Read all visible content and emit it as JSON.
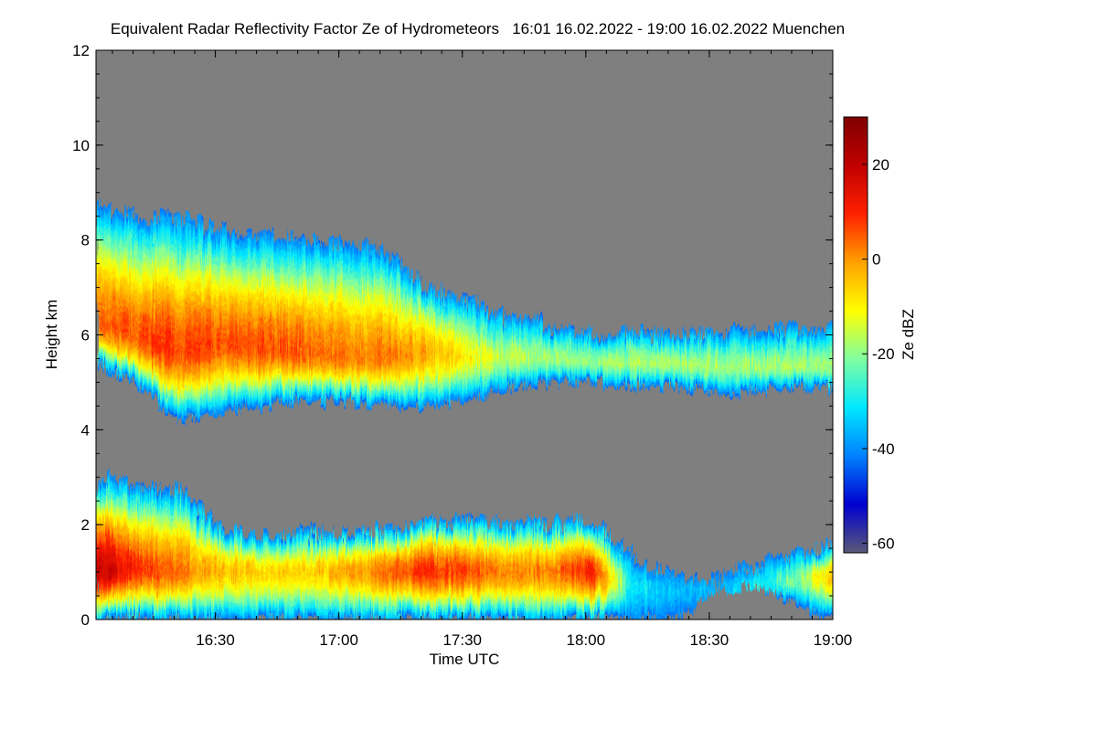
{
  "chart_data": {
    "type": "heatmap",
    "title": "Equivalent Radar Reflectivity Factor Ze of Hydrometeors   16:01 16.02.2022 - 19:00 16.02.2022 Muenchen",
    "xlabel": "Time UTC",
    "ylabel": "Height km",
    "colorbar_label": "Ze dBZ",
    "x_range": [
      "16:01",
      "19:00"
    ],
    "x_ticks": [
      "16:30",
      "17:00",
      "17:30",
      "18:00",
      "18:30",
      "19:00"
    ],
    "x_tick_minutes": [
      29,
      59,
      89,
      119,
      149,
      179
    ],
    "xlim_minutes": [
      0,
      179
    ],
    "ylim": [
      0,
      12
    ],
    "y_ticks": [
      0,
      2,
      4,
      6,
      8,
      10,
      12
    ],
    "colorbar_range": [
      -62,
      30
    ],
    "colorbar_ticks": [
      20,
      0,
      -20,
      -40,
      -60
    ],
    "background_color": "#7f7f7f",
    "colormap": [
      "#5a5a78",
      "#0000d0",
      "#0080ff",
      "#00e8ff",
      "#80ffa0",
      "#ffff00",
      "#ffa000",
      "#ff2000",
      "#c00000",
      "#800000"
    ],
    "layers": [
      {
        "name": "upper",
        "x_minutes": [
          0,
          10,
          20,
          30,
          40,
          50,
          60,
          70,
          80,
          90,
          100,
          110,
          120,
          130,
          140,
          150,
          160,
          170,
          179
        ],
        "base_km": [
          5.4,
          4.9,
          4.2,
          4.4,
          4.5,
          4.6,
          4.6,
          4.5,
          4.5,
          4.6,
          4.9,
          5.0,
          5.0,
          4.9,
          4.9,
          4.8,
          4.8,
          4.9,
          4.9
        ],
        "top_km": [
          8.7,
          8.5,
          8.4,
          8.2,
          8.1,
          8.0,
          7.9,
          7.8,
          7.0,
          6.7,
          6.3,
          6.2,
          6.0,
          6.0,
          6.0,
          6.0,
          6.0,
          6.1,
          6.1
        ],
        "core_km": [
          6.2,
          5.9,
          5.6,
          5.8,
          5.7,
          5.6,
          5.5,
          5.5,
          5.6,
          5.5,
          5.5,
          5.5,
          5.4,
          5.4,
          5.4,
          5.3,
          5.3,
          5.3,
          5.3
        ],
        "peak_dBZ": [
          4,
          6,
          8,
          6,
          6,
          5,
          2,
          2,
          -2,
          -10,
          -16,
          -18,
          -18,
          -18,
          -18,
          -18,
          -18,
          -18,
          -18
        ]
      },
      {
        "name": "lower",
        "x_minutes": [
          0,
          10,
          20,
          30,
          40,
          50,
          60,
          70,
          80,
          90,
          100,
          110,
          120,
          130,
          140,
          150,
          160,
          170,
          179
        ],
        "base_km": [
          0,
          0,
          0,
          0,
          0,
          0,
          0,
          0,
          0,
          0,
          0,
          0,
          0,
          0,
          0,
          0.6,
          0.7,
          0.3,
          0
        ],
        "top_km": [
          3.0,
          2.8,
          2.7,
          1.9,
          1.7,
          1.8,
          1.8,
          1.9,
          2.0,
          2.1,
          2.0,
          2.0,
          2.1,
          1.3,
          0.9,
          0.8,
          1.1,
          1.4,
          1.5
        ],
        "core_km": [
          1.0,
          1.0,
          1.0,
          1.0,
          1.0,
          1.0,
          1.0,
          1.0,
          1.0,
          1.0,
          1.0,
          1.0,
          1.0,
          0.7,
          0.6,
          0.5,
          0.7,
          0.8,
          0.9
        ],
        "peak_dBZ": [
          20,
          8,
          4,
          -4,
          -6,
          -6,
          -2,
          2,
          10,
          6,
          0,
          2,
          10,
          -30,
          -35,
          -35,
          -30,
          -20,
          -5
        ]
      }
    ]
  }
}
